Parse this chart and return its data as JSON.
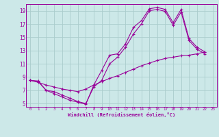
{
  "xlabel": "Windchill (Refroidissement éolien,°C)",
  "background_color": "#cce8e8",
  "line_color": "#990099",
  "grid_color": "#aacccc",
  "xlim": [
    -0.5,
    23.5
  ],
  "ylim": [
    4.5,
    20.0
  ],
  "xticks": [
    0,
    1,
    2,
    3,
    4,
    5,
    6,
    7,
    8,
    9,
    10,
    11,
    12,
    13,
    14,
    15,
    16,
    17,
    18,
    19,
    20,
    21,
    22,
    23
  ],
  "yticks": [
    5,
    7,
    9,
    11,
    13,
    15,
    17,
    19
  ],
  "line1_x": [
    0,
    1,
    2,
    3,
    4,
    5,
    6,
    7,
    8,
    9,
    10,
    11,
    12,
    13,
    14,
    15,
    16,
    17,
    18,
    19,
    20,
    21,
    22
  ],
  "line1_y": [
    8.5,
    8.3,
    7.0,
    6.5,
    6.0,
    5.5,
    5.2,
    4.9,
    7.8,
    10.0,
    12.3,
    12.5,
    14.0,
    16.5,
    17.5,
    19.3,
    19.5,
    19.2,
    17.2,
    19.2,
    14.8,
    13.5,
    12.8
  ],
  "line2_x": [
    0,
    1,
    2,
    3,
    4,
    5,
    6,
    7,
    8,
    9,
    10,
    11,
    12,
    13,
    14,
    15,
    16,
    17,
    18,
    19,
    20,
    21,
    22
  ],
  "line2_y": [
    8.5,
    8.4,
    7.0,
    6.8,
    6.3,
    5.8,
    5.3,
    5.0,
    7.5,
    8.5,
    11.0,
    12.0,
    13.5,
    15.5,
    17.0,
    19.0,
    19.2,
    18.9,
    16.8,
    18.8,
    14.5,
    13.2,
    12.5
  ],
  "line3_x": [
    0,
    1,
    2,
    3,
    4,
    5,
    6,
    7,
    8,
    9,
    10,
    11,
    12,
    13,
    14,
    15,
    16,
    17,
    18,
    19,
    20,
    21,
    22
  ],
  "line3_y": [
    8.5,
    8.2,
    7.8,
    7.5,
    7.2,
    7.0,
    6.8,
    7.2,
    7.8,
    8.3,
    8.8,
    9.2,
    9.7,
    10.2,
    10.7,
    11.1,
    11.5,
    11.8,
    12.0,
    12.2,
    12.3,
    12.5,
    12.8
  ]
}
